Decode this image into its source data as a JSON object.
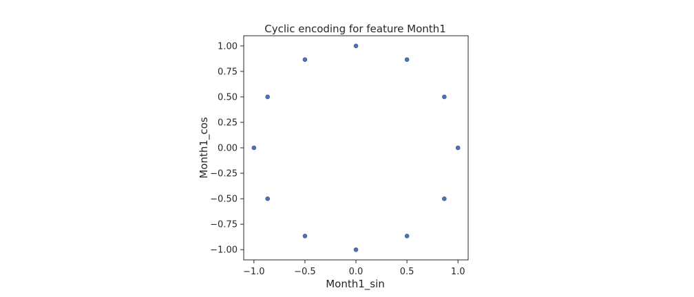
{
  "chart_data": {
    "type": "scatter",
    "title": "Cyclic encoding for feature Month1",
    "xlabel": "Month1_sin",
    "ylabel": "Month1_cos",
    "xlim": [
      -1.1,
      1.1
    ],
    "ylim": [
      -1.1,
      1.1
    ],
    "grid": false,
    "x_ticks": [
      -1.0,
      -0.5,
      0.0,
      0.5,
      1.0
    ],
    "x_tick_labels": [
      "−1.0",
      "−0.5",
      "0.0",
      "0.5",
      "1.0"
    ],
    "y_ticks": [
      1.0,
      0.75,
      0.5,
      0.25,
      0.0,
      -0.25,
      -0.5,
      -0.75,
      -1.0
    ],
    "y_tick_labels": [
      "1.00",
      "0.75",
      "0.50",
      "0.25",
      "0.00",
      "−0.25",
      "−0.50",
      "−0.75",
      "−1.00"
    ],
    "series": [
      {
        "color": "#4c72b0",
        "points": [
          {
            "x": 0.0,
            "y": 1.0
          },
          {
            "x": 0.5,
            "y": 0.866
          },
          {
            "x": 0.866,
            "y": 0.5
          },
          {
            "x": 1.0,
            "y": 0.0
          },
          {
            "x": 0.866,
            "y": -0.5
          },
          {
            "x": 0.5,
            "y": -0.866
          },
          {
            "x": 0.0,
            "y": -1.0
          },
          {
            "x": -0.5,
            "y": -0.866
          },
          {
            "x": -0.866,
            "y": -0.5
          },
          {
            "x": -1.0,
            "y": 0.0
          },
          {
            "x": -0.866,
            "y": 0.5
          },
          {
            "x": -0.5,
            "y": 0.866
          }
        ]
      }
    ]
  }
}
